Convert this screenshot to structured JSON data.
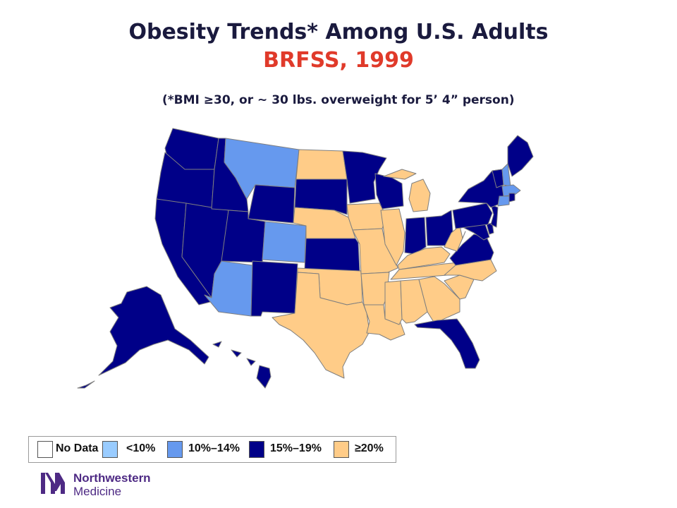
{
  "title": "Obesity Trends* Among U.S. Adults",
  "subtitle": "BRFSS, 1999",
  "note": "(*BMI ≥30, or ~ 30 lbs. overweight for 5’ 4” person)",
  "colors": {
    "no_data": "#ffffff",
    "lt10": "#99ccff",
    "c10_14": "#6699ee",
    "c15_19": "#000088",
    "ge20": "#ffcc88"
  },
  "legend": [
    {
      "label": "No Data",
      "key": "no_data"
    },
    {
      "label": "<10%",
      "key": "lt10"
    },
    {
      "label": "10%–14%",
      "key": "c10_14"
    },
    {
      "label": "15%–19%",
      "key": "c15_19"
    },
    {
      "label": "≥20%",
      "key": "ge20"
    }
  ],
  "states": {
    "WA": "c15_19",
    "OR": "c15_19",
    "CA": "c15_19",
    "NV": "c15_19",
    "ID": "c15_19",
    "MT": "c10_14",
    "WY": "c15_19",
    "UT": "c15_19",
    "AZ": "c10_14",
    "CO": "c10_14",
    "NM": "c15_19",
    "ND": "ge20",
    "SD": "c15_19",
    "NE": "ge20",
    "KS": "c15_19",
    "OK": "ge20",
    "TX": "ge20",
    "MN": "c15_19",
    "IA": "ge20",
    "MO": "ge20",
    "AR": "ge20",
    "LA": "ge20",
    "WI": "c15_19",
    "IL": "ge20",
    "MI": "ge20",
    "IN": "c15_19",
    "OH": "c15_19",
    "KY": "ge20",
    "TN": "ge20",
    "MS": "ge20",
    "AL": "ge20",
    "GA": "ge20",
    "FL": "c15_19",
    "SC": "ge20",
    "NC": "ge20",
    "VA": "c15_19",
    "WV": "ge20",
    "PA": "c15_19",
    "NY": "c15_19",
    "VT": "c15_19",
    "NH": "c10_14",
    "ME": "c15_19",
    "MA": "c10_14",
    "CT": "c10_14",
    "RI": "c15_19",
    "NJ": "c15_19",
    "DE": "c15_19",
    "MD": "c15_19",
    "AK": "c15_19",
    "HI": "c15_19"
  },
  "brand": {
    "line1": "Northwestern",
    "line2": "Medicine",
    "color": "#4e2a84"
  }
}
